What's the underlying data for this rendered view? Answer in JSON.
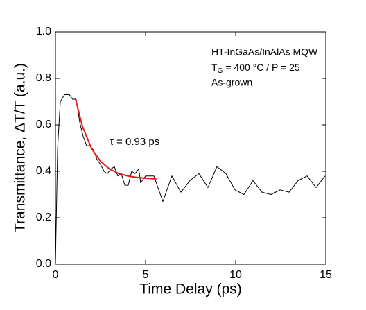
{
  "chart_data": {
    "type": "line",
    "x_label": "Time Delay (ps)",
    "y_label": "Transmittance, ΔT/T (a.u.)",
    "annotations": {
      "sample": "HT-InGaAs/InAlAs MQW",
      "growth": [
        "T",
        "G",
        "= 400 °C / P = 25"
      ],
      "state": "As-grown",
      "tau": "τ = 0.93 ps"
    },
    "xlim": [
      0,
      15
    ],
    "xticks": [
      0,
      5,
      10,
      15
    ],
    "ylim": [
      0,
      1
    ],
    "yticks": [
      {
        "value": 0,
        "label": "0.0"
      },
      0.2,
      0.4,
      0.6,
      0.8,
      {
        "value": 1,
        "label": "1.0"
      }
    ],
    "series": [
      {
        "color": "#000000",
        "width": 1,
        "x": [
          0,
          0.12,
          0.27,
          0.5,
          0.77,
          0.96,
          1.15,
          1.35,
          1.54,
          1.73,
          1.92,
          2.12,
          2.31,
          2.5,
          2.7,
          2.88,
          3.08,
          3.27,
          3.46,
          3.65,
          3.85,
          4.04,
          4.23,
          4.42,
          4.62,
          4.73,
          5.0,
          5.46,
          5.96,
          6.46,
          6.96,
          7.46,
          7.96,
          8.46,
          8.96,
          9.46,
          9.96,
          10.46,
          10.96,
          11.46,
          11.96,
          12.46,
          12.96,
          13.46,
          13.96,
          14.46,
          14.96
        ],
        "values": [
          0,
          0.5,
          0.7,
          0.73,
          0.73,
          0.71,
          0.71,
          0.61,
          0.55,
          0.51,
          0.51,
          0.49,
          0.45,
          0.43,
          0.4,
          0.39,
          0.41,
          0.42,
          0.38,
          0.39,
          0.34,
          0.34,
          0.4,
          0.39,
          0.41,
          0.35,
          0.38,
          0.38,
          0.27,
          0.38,
          0.31,
          0.36,
          0.39,
          0.33,
          0.42,
          0.39,
          0.32,
          0.3,
          0.36,
          0.31,
          0.3,
          0.32,
          0.31,
          0.36,
          0.38,
          0.33,
          0.38
        ]
      },
      {
        "color": "#e41a1c",
        "width": 2,
        "x": [
          1.1,
          1.5,
          2.0,
          2.5,
          3.0,
          3.5,
          4.0,
          4.5,
          5.0,
          5.6
        ],
        "values": [
          0.715,
          0.593,
          0.498,
          0.443,
          0.41,
          0.391,
          0.38,
          0.374,
          0.37,
          0.367
        ]
      }
    ]
  }
}
